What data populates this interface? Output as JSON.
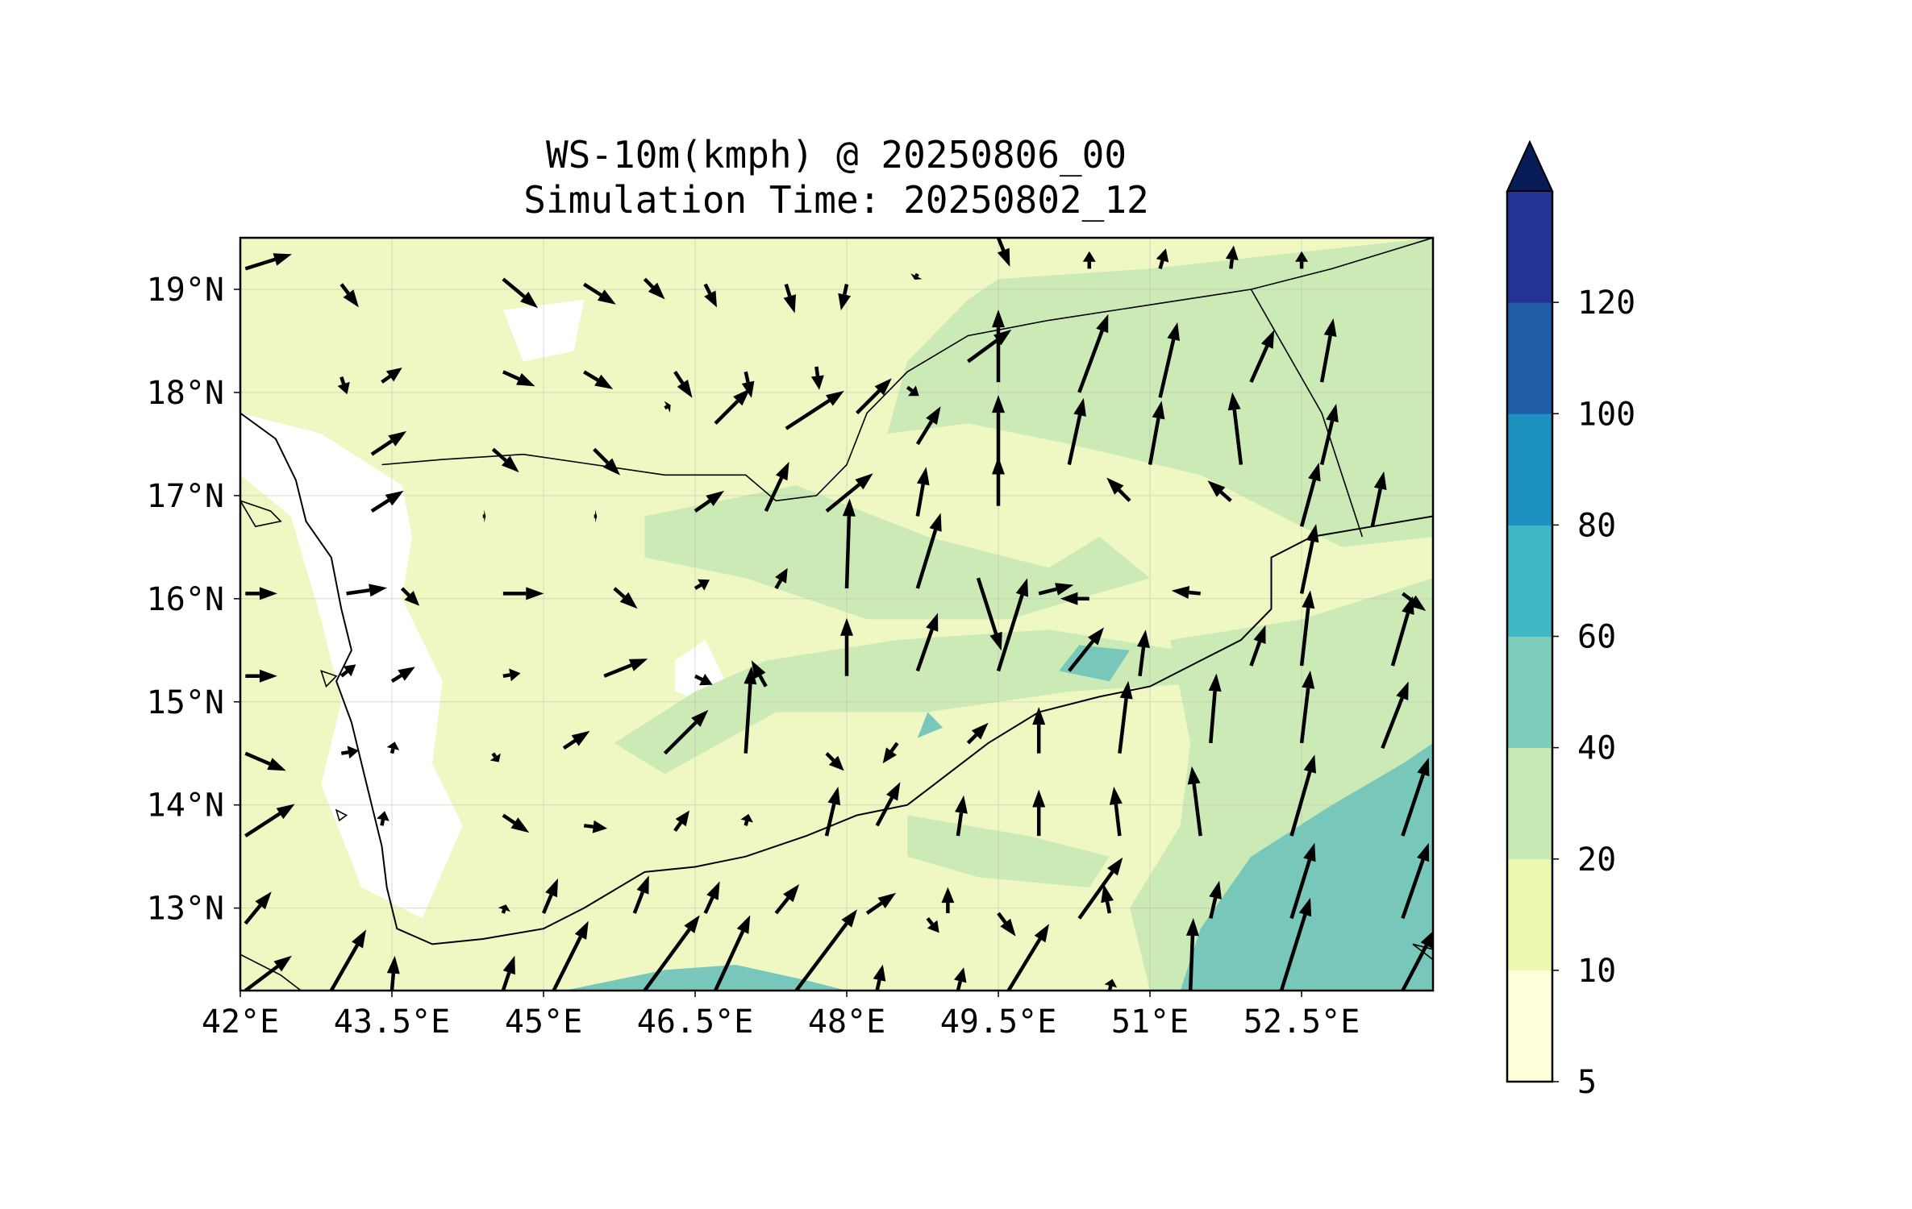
{
  "title": {
    "line1": "WS-10m(kmph) @ 20250806_00",
    "line2": "Simulation Time: 20250802_12"
  },
  "map": {
    "lon_range": [
      42,
      53.8
    ],
    "lat_range": [
      12.2,
      19.5
    ],
    "x_ticks": [
      {
        "value": 42.0,
        "label": "42°E"
      },
      {
        "value": 43.5,
        "label": "43.5°E"
      },
      {
        "value": 45.0,
        "label": "45°E"
      },
      {
        "value": 46.5,
        "label": "46.5°E"
      },
      {
        "value": 48.0,
        "label": "48°E"
      },
      {
        "value": 49.5,
        "label": "49.5°E"
      },
      {
        "value": 51.0,
        "label": "51°E"
      },
      {
        "value": 52.5,
        "label": "52.5°E"
      }
    ],
    "y_ticks": [
      {
        "value": 19,
        "label": "19°N"
      },
      {
        "value": 18,
        "label": "18°N"
      },
      {
        "value": 17,
        "label": "17°N"
      },
      {
        "value": 16,
        "label": "16°N"
      },
      {
        "value": 15,
        "label": "15°N"
      },
      {
        "value": 14,
        "label": "14°N"
      },
      {
        "value": 13,
        "label": "13°N"
      }
    ],
    "grid": true,
    "background_color": "#eff8c2",
    "white_zones": [
      [
        [
          42.0,
          17.8
        ],
        [
          42.8,
          17.6
        ],
        [
          43.6,
          17.1
        ],
        [
          43.7,
          16.6
        ],
        [
          43.6,
          16.0
        ],
        [
          44.0,
          15.2
        ],
        [
          43.9,
          14.4
        ],
        [
          44.2,
          13.8
        ],
        [
          43.8,
          12.9
        ],
        [
          43.2,
          13.2
        ],
        [
          42.8,
          14.2
        ],
        [
          43.0,
          15.0
        ],
        [
          42.8,
          15.8
        ],
        [
          42.5,
          16.8
        ],
        [
          42.0,
          17.2
        ]
      ],
      [
        [
          46.3,
          15.4
        ],
        [
          46.6,
          15.6
        ],
        [
          46.8,
          15.2
        ],
        [
          46.6,
          15.0
        ],
        [
          46.3,
          15.1
        ]
      ],
      [
        [
          44.6,
          18.8
        ],
        [
          45.4,
          18.9
        ],
        [
          45.3,
          18.4
        ],
        [
          44.8,
          18.3
        ]
      ]
    ],
    "light_green_zones": [
      [
        [
          49.5,
          19.1
        ],
        [
          51.0,
          19.2
        ],
        [
          53.8,
          19.5
        ],
        [
          53.8,
          16.6
        ],
        [
          52.9,
          16.5
        ],
        [
          51.5,
          17.2
        ],
        [
          50.2,
          17.5
        ],
        [
          49.2,
          17.7
        ],
        [
          48.4,
          17.6
        ],
        [
          48.6,
          18.3
        ],
        [
          49.2,
          18.9
        ]
      ],
      [
        [
          46.0,
          16.8
        ],
        [
          47.5,
          17.1
        ],
        [
          48.8,
          16.6
        ],
        [
          50.0,
          16.3
        ],
        [
          50.5,
          16.6
        ],
        [
          51.0,
          16.2
        ],
        [
          49.6,
          15.8
        ],
        [
          48.2,
          15.8
        ],
        [
          47.0,
          16.2
        ],
        [
          46.0,
          16.4
        ]
      ],
      [
        [
          47.2,
          15.4
        ],
        [
          48.5,
          15.6
        ],
        [
          50.0,
          15.7
        ],
        [
          51.3,
          15.5
        ],
        [
          51.8,
          15.2
        ],
        [
          50.2,
          15.1
        ],
        [
          48.8,
          14.9
        ],
        [
          47.3,
          14.9
        ],
        [
          46.2,
          14.3
        ],
        [
          45.7,
          14.6
        ],
        [
          46.5,
          15.1
        ]
      ],
      [
        [
          51.2,
          15.6
        ],
        [
          52.5,
          15.8
        ],
        [
          53.8,
          16.2
        ],
        [
          53.8,
          12.2
        ],
        [
          51.0,
          12.2
        ],
        [
          50.8,
          13.0
        ],
        [
          51.3,
          13.8
        ],
        [
          51.4,
          14.6
        ]
      ],
      [
        [
          48.6,
          13.9
        ],
        [
          49.8,
          13.7
        ],
        [
          50.6,
          13.5
        ],
        [
          50.4,
          13.2
        ],
        [
          49.3,
          13.3
        ],
        [
          48.6,
          13.5
        ]
      ]
    ],
    "teal_zones": [
      [
        [
          51.3,
          12.2
        ],
        [
          51.5,
          12.8
        ],
        [
          52.0,
          13.5
        ],
        [
          52.8,
          14.0
        ],
        [
          53.5,
          14.4
        ],
        [
          53.8,
          14.6
        ],
        [
          53.8,
          12.2
        ]
      ],
      [
        [
          45.2,
          12.2
        ],
        [
          46.2,
          12.4
        ],
        [
          46.9,
          12.45
        ],
        [
          47.6,
          12.3
        ],
        [
          48.0,
          12.2
        ]
      ],
      [
        [
          50.3,
          15.55
        ],
        [
          50.8,
          15.5
        ],
        [
          50.6,
          15.2
        ],
        [
          50.1,
          15.3
        ]
      ],
      [
        [
          48.8,
          14.9
        ],
        [
          48.7,
          14.65
        ],
        [
          48.95,
          14.75
        ]
      ]
    ],
    "coastline": [
      [
        42.0,
        17.8
      ],
      [
        42.35,
        17.55
      ],
      [
        42.55,
        17.15
      ],
      [
        42.65,
        16.75
      ],
      [
        42.9,
        16.4
      ],
      [
        43.0,
        15.9
      ],
      [
        43.1,
        15.5
      ],
      [
        42.95,
        15.2
      ],
      [
        43.1,
        14.8
      ],
      [
        43.2,
        14.4
      ],
      [
        43.3,
        14.0
      ],
      [
        43.4,
        13.6
      ],
      [
        43.45,
        13.2
      ],
      [
        43.55,
        12.8
      ],
      [
        43.9,
        12.65
      ],
      [
        44.4,
        12.7
      ],
      [
        45.0,
        12.8
      ],
      [
        45.4,
        13.0
      ],
      [
        46.0,
        13.35
      ],
      [
        46.5,
        13.4
      ],
      [
        47.0,
        13.5
      ],
      [
        47.6,
        13.7
      ],
      [
        48.1,
        13.9
      ],
      [
        48.6,
        14.0
      ],
      [
        49.0,
        14.3
      ],
      [
        49.4,
        14.6
      ],
      [
        49.9,
        14.9
      ],
      [
        50.5,
        15.05
      ],
      [
        51.0,
        15.15
      ],
      [
        51.5,
        15.4
      ],
      [
        51.9,
        15.6
      ],
      [
        52.2,
        15.9
      ],
      [
        52.2,
        16.4
      ],
      [
        52.6,
        16.6
      ],
      [
        53.2,
        16.7
      ],
      [
        53.8,
        16.8
      ]
    ],
    "borders": [
      [
        [
          43.4,
          17.3
        ],
        [
          44.0,
          17.35
        ],
        [
          44.8,
          17.4
        ],
        [
          45.5,
          17.3
        ],
        [
          46.2,
          17.2
        ],
        [
          47.0,
          17.2
        ],
        [
          47.3,
          16.95
        ],
        [
          47.7,
          17.0
        ],
        [
          48.0,
          17.3
        ],
        [
          48.2,
          17.8
        ],
        [
          48.6,
          18.2
        ],
        [
          49.2,
          18.55
        ],
        [
          50.0,
          18.7
        ],
        [
          51.0,
          18.85
        ],
        [
          52.0,
          19.0
        ],
        [
          52.8,
          19.2
        ],
        [
          53.8,
          19.5
        ]
      ],
      [
        [
          52.0,
          19.0
        ],
        [
          52.7,
          17.8
        ],
        [
          53.1,
          16.6
        ]
      ],
      [
        [
          42.0,
          12.55
        ],
        [
          42.4,
          12.35
        ],
        [
          42.6,
          12.2
        ]
      ]
    ],
    "islands": [
      [
        [
          42.0,
          16.95
        ],
        [
          42.3,
          16.85
        ],
        [
          42.4,
          16.75
        ],
        [
          42.15,
          16.7
        ]
      ],
      [
        [
          42.8,
          15.3
        ],
        [
          42.95,
          15.25
        ],
        [
          42.85,
          15.15
        ]
      ],
      [
        [
          42.95,
          13.95
        ],
        [
          43.05,
          13.9
        ],
        [
          42.98,
          13.85
        ]
      ],
      [
        [
          53.6,
          12.65
        ],
        [
          53.8,
          12.6
        ],
        [
          53.8,
          12.5
        ]
      ]
    ],
    "wind_vectors": [
      [
        42.05,
        19.2,
        16,
        5
      ],
      [
        43.0,
        19.05,
        6,
        -8
      ],
      [
        44.6,
        19.1,
        12,
        -10
      ],
      [
        45.4,
        19.05,
        11,
        -7
      ],
      [
        46.0,
        19.1,
        7,
        -7
      ],
      [
        46.6,
        19.05,
        4,
        -8
      ],
      [
        47.4,
        19.05,
        3,
        -10
      ],
      [
        48.0,
        19.05,
        -2,
        -9
      ],
      [
        48.7,
        19.15,
        -1,
        -2
      ],
      [
        49.5,
        19.5,
        4,
        -10
      ],
      [
        50.4,
        19.2,
        0,
        6
      ],
      [
        51.1,
        19.2,
        2,
        7
      ],
      [
        51.8,
        19.2,
        1,
        8
      ],
      [
        52.5,
        19.2,
        0,
        6
      ],
      [
        43.0,
        18.15,
        2,
        -6
      ],
      [
        43.4,
        18.1,
        7,
        5
      ],
      [
        44.6,
        18.2,
        11,
        -5
      ],
      [
        45.4,
        18.2,
        10,
        -6
      ],
      [
        46.3,
        18.2,
        6,
        -9
      ],
      [
        47.0,
        18.2,
        2,
        -9
      ],
      [
        47.7,
        18.25,
        1,
        -8
      ],
      [
        48.6,
        18.05,
        4,
        -3
      ],
      [
        49.2,
        18.3,
        15,
        11
      ],
      [
        49.5,
        18.1,
        0,
        25
      ],
      [
        50.3,
        18.0,
        10,
        27
      ],
      [
        51.1,
        17.95,
        6,
        26
      ],
      [
        52.0,
        18.1,
        8,
        18
      ],
      [
        52.7,
        18.1,
        4,
        22
      ],
      [
        46.2,
        17.85,
        2,
        1
      ],
      [
        46.7,
        17.7,
        12,
        12
      ],
      [
        47.4,
        17.65,
        20,
        13
      ],
      [
        48.1,
        17.8,
        12,
        12
      ],
      [
        48.7,
        17.5,
        8,
        13
      ],
      [
        49.5,
        17.3,
        0,
        24
      ],
      [
        50.2,
        17.3,
        5,
        23
      ],
      [
        51.0,
        17.3,
        4,
        22
      ],
      [
        51.9,
        17.3,
        -3,
        25
      ],
      [
        52.7,
        17.3,
        5,
        21
      ],
      [
        43.3,
        17.4,
        12,
        8
      ],
      [
        44.5,
        17.45,
        9,
        -8
      ],
      [
        45.5,
        17.45,
        9,
        -9
      ],
      [
        43.3,
        16.85,
        11,
        7
      ],
      [
        44.4,
        16.8,
        1,
        0
      ],
      [
        45.5,
        16.8,
        1,
        0
      ],
      [
        46.5,
        16.85,
        10,
        7
      ],
      [
        47.2,
        16.85,
        8,
        17
      ],
      [
        47.8,
        16.85,
        16,
        13
      ],
      [
        48.7,
        16.8,
        3,
        17
      ],
      [
        49.5,
        16.9,
        0,
        17
      ],
      [
        50.8,
        16.95,
        -8,
        8
      ],
      [
        51.8,
        16.95,
        -8,
        7
      ],
      [
        52.5,
        16.7,
        6,
        22
      ],
      [
        53.2,
        16.7,
        4,
        19
      ],
      [
        42.05,
        16.05,
        11,
        0
      ],
      [
        43.05,
        16.05,
        14,
        2
      ],
      [
        43.6,
        16.1,
        6,
        -6
      ],
      [
        44.6,
        16.05,
        14,
        0
      ],
      [
        45.7,
        16.1,
        8,
        -7
      ],
      [
        46.5,
        16.1,
        5,
        3
      ],
      [
        47.3,
        16.1,
        4,
        7
      ],
      [
        48.0,
        16.1,
        1,
        31
      ],
      [
        48.7,
        16.1,
        8,
        26
      ],
      [
        49.3,
        16.2,
        8,
        -25
      ],
      [
        49.9,
        16.05,
        12,
        3
      ],
      [
        50.4,
        16.0,
        -10,
        0
      ],
      [
        51.5,
        16.05,
        -10,
        1
      ],
      [
        52.5,
        16.05,
        5,
        24
      ],
      [
        53.5,
        16.05,
        8,
        -6
      ],
      [
        42.05,
        15.25,
        11,
        0
      ],
      [
        43.0,
        15.25,
        5,
        4
      ],
      [
        43.5,
        15.2,
        8,
        5
      ],
      [
        44.6,
        15.25,
        6,
        1
      ],
      [
        45.6,
        15.25,
        15,
        6
      ],
      [
        46.5,
        15.25,
        6,
        -3
      ],
      [
        47.2,
        15.15,
        -5,
        9
      ],
      [
        48.0,
        15.25,
        0,
        20
      ],
      [
        48.7,
        15.3,
        7,
        20
      ],
      [
        49.5,
        15.3,
        10,
        32
      ],
      [
        50.2,
        15.3,
        12,
        15
      ],
      [
        50.9,
        15.25,
        2,
        16
      ],
      [
        52.0,
        15.35,
        5,
        14
      ],
      [
        52.5,
        15.35,
        3,
        26
      ],
      [
        53.4,
        15.35,
        7,
        24
      ],
      [
        42.05,
        14.5,
        14,
        -6
      ],
      [
        43.0,
        14.5,
        6,
        1
      ],
      [
        43.5,
        14.5,
        1,
        4
      ],
      [
        44.5,
        14.5,
        2,
        -3
      ],
      [
        45.2,
        14.55,
        9,
        6
      ],
      [
        46.2,
        14.5,
        15,
        15
      ],
      [
        47.0,
        14.5,
        2,
        30
      ],
      [
        47.8,
        14.5,
        6,
        -6
      ],
      [
        48.5,
        14.6,
        -5,
        -7
      ],
      [
        49.2,
        14.6,
        7,
        7
      ],
      [
        49.9,
        14.5,
        0,
        16
      ],
      [
        50.7,
        14.5,
        3,
        25
      ],
      [
        51.6,
        14.6,
        2,
        24
      ],
      [
        52.5,
        14.6,
        3,
        25
      ],
      [
        53.3,
        14.55,
        9,
        23
      ],
      [
        42.05,
        13.7,
        17,
        11
      ],
      [
        43.4,
        13.8,
        1,
        5
      ],
      [
        44.6,
        13.9,
        9,
        -6
      ],
      [
        45.4,
        13.8,
        8,
        -1
      ],
      [
        46.3,
        13.75,
        5,
        7
      ],
      [
        47.0,
        13.8,
        1,
        4
      ],
      [
        47.8,
        13.7,
        4,
        17
      ],
      [
        48.3,
        13.8,
        8,
        15
      ],
      [
        49.1,
        13.7,
        2,
        14
      ],
      [
        49.9,
        13.7,
        0,
        16
      ],
      [
        50.7,
        13.7,
        -2,
        17
      ],
      [
        51.5,
        13.7,
        -3,
        24
      ],
      [
        52.4,
        13.7,
        8,
        28
      ],
      [
        53.5,
        13.7,
        9,
        27
      ],
      [
        42.05,
        12.85,
        9,
        11
      ],
      [
        44.6,
        12.95,
        1,
        3
      ],
      [
        45.0,
        12.95,
        5,
        12
      ],
      [
        45.9,
        12.95,
        5,
        13
      ],
      [
        46.6,
        12.95,
        5,
        11
      ],
      [
        47.3,
        12.95,
        8,
        10
      ],
      [
        48.2,
        12.95,
        10,
        7
      ],
      [
        48.8,
        12.9,
        4,
        -5
      ],
      [
        49.0,
        12.95,
        0,
        9
      ],
      [
        49.5,
        12.95,
        6,
        -8
      ],
      [
        50.3,
        12.9,
        15,
        21
      ],
      [
        50.6,
        12.95,
        -2,
        10
      ],
      [
        51.6,
        12.9,
        3,
        13
      ],
      [
        52.4,
        12.9,
        8,
        26
      ],
      [
        53.5,
        12.9,
        9,
        26
      ],
      [
        42.05,
        12.2,
        16,
        12
      ],
      [
        42.9,
        12.2,
        12,
        21
      ],
      [
        43.5,
        12.2,
        1,
        12
      ],
      [
        44.6,
        12.2,
        4,
        12
      ],
      [
        45.1,
        12.2,
        12,
        24
      ],
      [
        46.0,
        12.2,
        19,
        26
      ],
      [
        46.7,
        12.2,
        12,
        26
      ],
      [
        47.5,
        12.2,
        21,
        28
      ],
      [
        48.3,
        12.2,
        2,
        9
      ],
      [
        49.1,
        12.2,
        2,
        8
      ],
      [
        49.6,
        12.2,
        14,
        23
      ],
      [
        50.6,
        12.2,
        1,
        4
      ],
      [
        51.4,
        12.2,
        1,
        25
      ],
      [
        52.3,
        12.2,
        10,
        32
      ],
      [
        53.5,
        12.2,
        11,
        21
      ]
    ]
  },
  "colorbar": {
    "levels": [
      "5",
      "10",
      "20",
      "40",
      "60",
      "80",
      "100",
      "120"
    ],
    "colors": [
      "#ffffd9",
      "#edf8b1",
      "#c7e9b4",
      "#7fcdbb",
      "#41b6c4",
      "#1d91c0",
      "#225ea8",
      "#253494"
    ],
    "extend_color": "#081d58"
  }
}
